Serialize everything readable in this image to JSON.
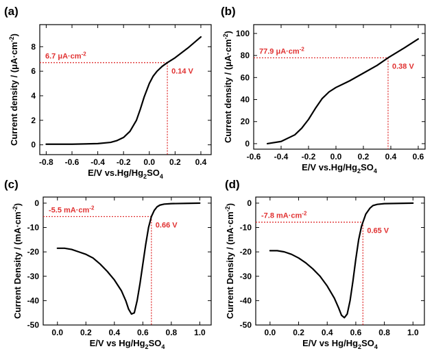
{
  "chart_data": [
    {
      "id": "a",
      "type": "line",
      "panel_label": "(a)",
      "xlabel": {
        "main": "E/V vs.Hg/Hg",
        "sub1": "2",
        "mid": "SO",
        "sub2": "4"
      },
      "ylabel": {
        "main": "Current density / (μA·cm",
        "sup": "-2",
        "end": ")"
      },
      "xlim": [
        -0.85,
        0.48
      ],
      "ylim": [
        -0.8,
        9.8
      ],
      "xticks": [
        -0.8,
        -0.6,
        -0.4,
        -0.2,
        0.0,
        0.2,
        0.4
      ],
      "xtick_labels": [
        "-0.8",
        "-0.6",
        "-0.4",
        "-0.2",
        "0.0",
        "0.2",
        "0.4"
      ],
      "yticks": [
        0,
        2,
        4,
        6,
        8
      ],
      "ytick_labels": [
        "0",
        "2",
        "4",
        "6",
        "8"
      ],
      "series": [
        {
          "x": [
            -0.8,
            -0.6,
            -0.4,
            -0.3,
            -0.25,
            -0.2,
            -0.15,
            -0.1,
            -0.07,
            -0.04,
            0.0,
            0.03,
            0.06,
            0.1,
            0.14,
            0.2,
            0.3,
            0.4
          ],
          "y": [
            0.05,
            0.05,
            0.1,
            0.2,
            0.35,
            0.6,
            1.1,
            2.0,
            2.9,
            3.9,
            5.0,
            5.6,
            6.0,
            6.4,
            6.7,
            7.1,
            7.9,
            8.8
          ]
        }
      ],
      "annotation": {
        "x": 0.14,
        "y": 6.7,
        "y_text": "6.7 μA·cm",
        "y_text_sup": "-2",
        "x_text": "0.14 V"
      }
    },
    {
      "id": "b",
      "type": "line",
      "panel_label": "(b)",
      "xlabel": {
        "main": "E/V vs.Hg/Hg",
        "sub1": "2",
        "mid": "SO",
        "sub2": "4"
      },
      "ylabel": {
        "main": "Current density / (μA·cm",
        "sup": "-2",
        "end": ")"
      },
      "xlim": [
        -0.6,
        0.65
      ],
      "ylim": [
        -5,
        108
      ],
      "xticks": [
        -0.6,
        -0.4,
        -0.2,
        0.0,
        0.2,
        0.4,
        0.6
      ],
      "xtick_labels": [
        "-0.6",
        "-0.4",
        "-0.2",
        "0.0",
        "0.2",
        "0.4",
        "0.6"
      ],
      "yticks": [
        0,
        20,
        40,
        60,
        80,
        100
      ],
      "ytick_labels": [
        "0",
        "20",
        "40",
        "60",
        "80",
        "100"
      ],
      "series": [
        {
          "x": [
            -0.5,
            -0.4,
            -0.3,
            -0.25,
            -0.2,
            -0.15,
            -0.1,
            -0.05,
            0.0,
            0.05,
            0.1,
            0.2,
            0.3,
            0.38,
            0.5,
            0.6
          ],
          "y": [
            0,
            2,
            8,
            14,
            22,
            32,
            41,
            47,
            51,
            54,
            57,
            64,
            71,
            77.9,
            87,
            95
          ]
        }
      ],
      "annotation": {
        "x": 0.38,
        "y": 77.9,
        "y_text": "77.9 μA·cm",
        "y_text_sup": "-2",
        "x_text": "0.38 V"
      }
    },
    {
      "id": "c",
      "type": "line",
      "panel_label": "(c)",
      "xlabel": {
        "main": "E/V vs Hg/Hg",
        "sub1": "2",
        "mid": "SO",
        "sub2": "4"
      },
      "ylabel": {
        "main": "Current Density / (mA·cm",
        "sup": "-2",
        "end": ")"
      },
      "xlim": [
        -0.1,
        1.08
      ],
      "ylim": [
        -50,
        2.5
      ],
      "xticks": [
        0.0,
        0.2,
        0.4,
        0.6,
        0.8,
        1.0
      ],
      "xtick_labels": [
        "0.0",
        "0.2",
        "0.4",
        "0.6",
        "0.8",
        "1.0"
      ],
      "yticks": [
        0,
        -10,
        -20,
        -30,
        -40,
        -50
      ],
      "ytick_labels": [
        "0",
        "-10",
        "-20",
        "-30",
        "-40",
        "-50"
      ],
      "series": [
        {
          "x": [
            0.0,
            0.05,
            0.1,
            0.15,
            0.2,
            0.25,
            0.3,
            0.35,
            0.4,
            0.45,
            0.48,
            0.5,
            0.52,
            0.54,
            0.56,
            0.58,
            0.6,
            0.62,
            0.64,
            0.66,
            0.68,
            0.7,
            0.72,
            0.75,
            0.8,
            0.9,
            1.0
          ],
          "y": [
            -18.5,
            -18.5,
            -19,
            -20,
            -21,
            -22.5,
            -25,
            -28,
            -31.5,
            -36,
            -40,
            -43.5,
            -45.5,
            -45,
            -40,
            -33,
            -25,
            -17,
            -10,
            -5.5,
            -3,
            -1.5,
            -0.8,
            -0.4,
            -0.2,
            -0.1,
            0
          ]
        }
      ],
      "annotation": {
        "x": 0.66,
        "y": -5.5,
        "y_text": "-5.5 mA·cm",
        "y_text_sup": "-2",
        "x_text": "0.66 V"
      }
    },
    {
      "id": "d",
      "type": "line",
      "panel_label": "(d)",
      "xlabel": {
        "main": "E/V vs Hg/Hg",
        "sub1": "2",
        "mid": "SO",
        "sub2": "4"
      },
      "ylabel": {
        "main": "Current Density / (mA·cm",
        "sup": "-2",
        "end": ")"
      },
      "xlim": [
        -0.1,
        1.08
      ],
      "ylim": [
        -50,
        2.5
      ],
      "xticks": [
        0.0,
        0.2,
        0.4,
        0.6,
        0.8,
        1.0
      ],
      "xtick_labels": [
        "0.0",
        "0.2",
        "0.4",
        "0.6",
        "0.8",
        "1.0"
      ],
      "yticks": [
        0,
        -10,
        -20,
        -30,
        -40,
        -50
      ],
      "ytick_labels": [
        "0",
        "-10",
        "-20",
        "-30",
        "-40",
        "-50"
      ],
      "series": [
        {
          "x": [
            0.0,
            0.05,
            0.1,
            0.15,
            0.2,
            0.25,
            0.3,
            0.35,
            0.4,
            0.45,
            0.48,
            0.5,
            0.52,
            0.54,
            0.56,
            0.58,
            0.6,
            0.62,
            0.64,
            0.65,
            0.67,
            0.7,
            0.72,
            0.75,
            0.8,
            0.9,
            1.0
          ],
          "y": [
            -19.5,
            -19.5,
            -20,
            -21,
            -22.5,
            -24.5,
            -27,
            -30,
            -34,
            -39,
            -43,
            -46,
            -47,
            -45.5,
            -40,
            -32,
            -23,
            -15,
            -9.5,
            -7.8,
            -4.5,
            -2,
            -1,
            -0.5,
            -0.2,
            -0.1,
            0
          ]
        }
      ],
      "annotation": {
        "x": 0.65,
        "y": -7.8,
        "y_text": "-7.8 mA·cm",
        "y_text_sup": "-2",
        "x_text": "0.65 V"
      }
    }
  ],
  "colors": {
    "curve": "#000000",
    "annotation": "#e03030",
    "axis": "#000000"
  }
}
